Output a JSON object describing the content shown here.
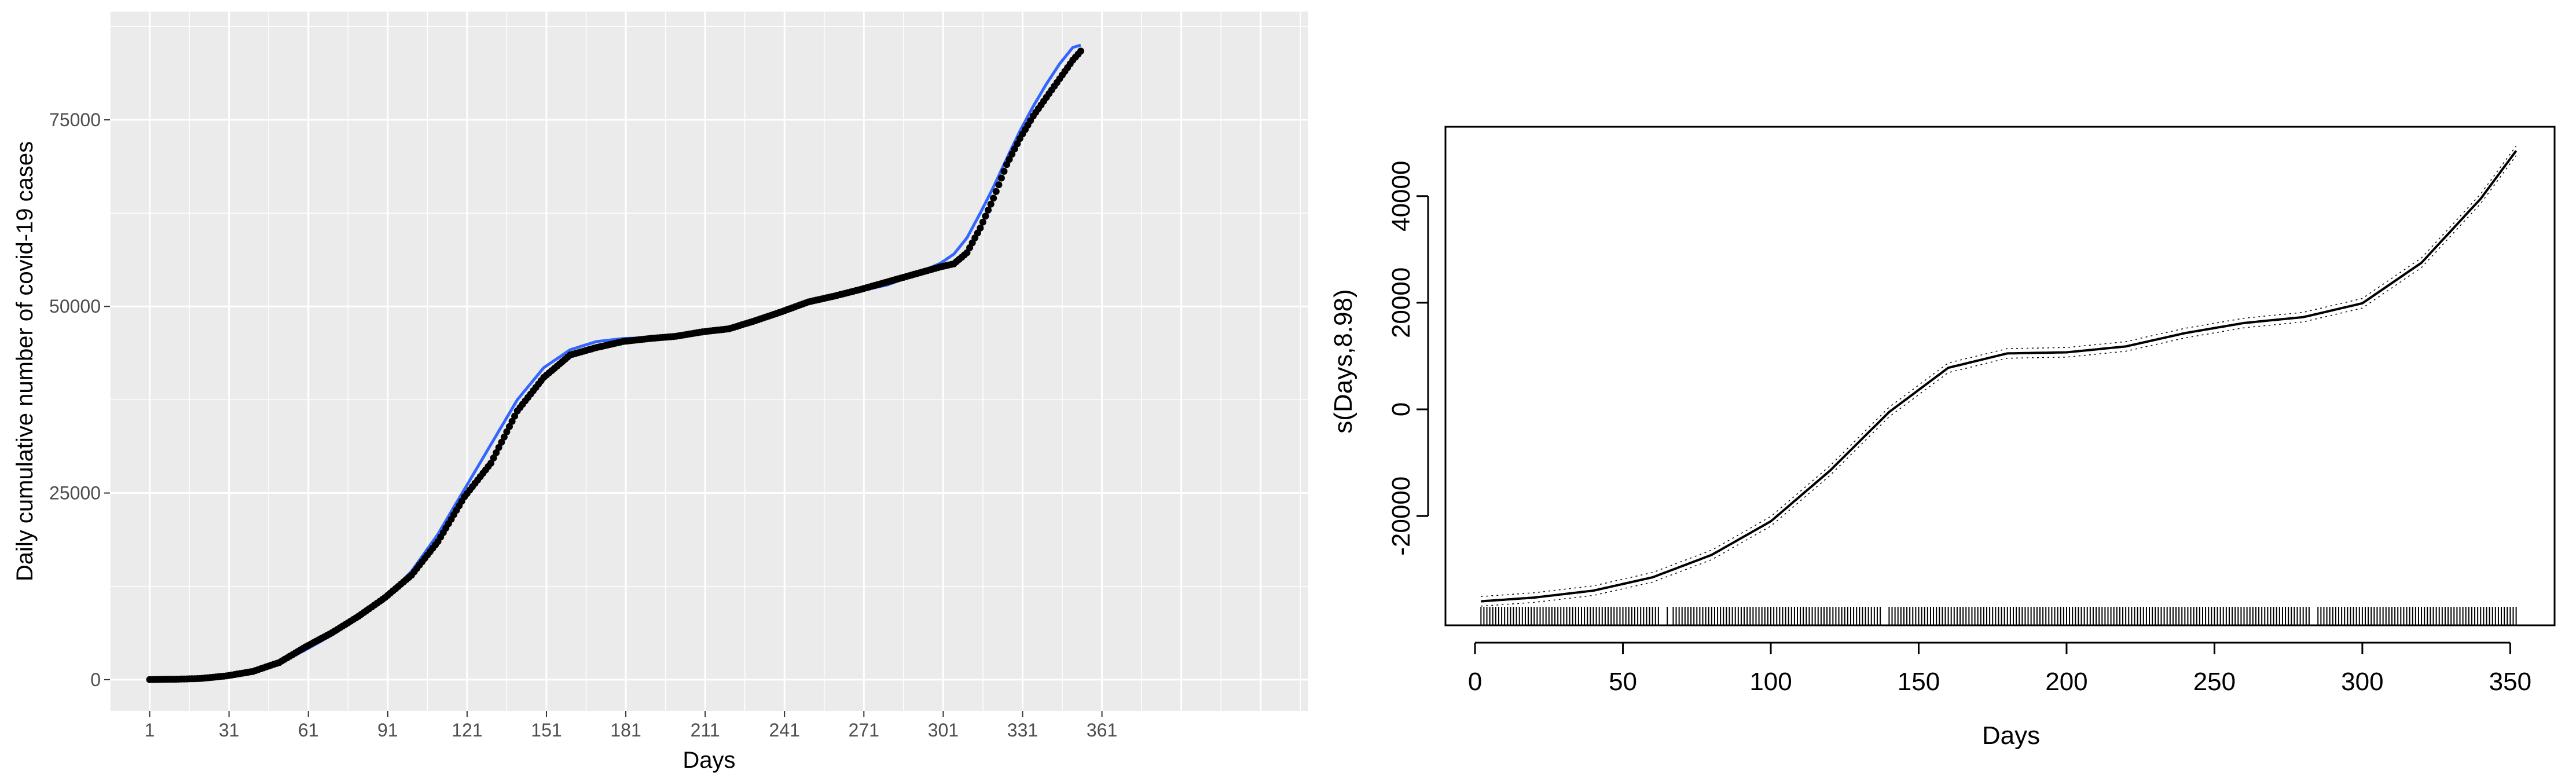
{
  "chart_data": [
    {
      "type": "scatter",
      "xlabel": "Days",
      "ylabel": "Daily cumulative number of covid-19 cases",
      "xlim": [
        -14,
        439
      ],
      "ylim": [
        -4200,
        89500
      ],
      "x_ticks": [
        1,
        31,
        61,
        91,
        121,
        151,
        181,
        211,
        241,
        271,
        301,
        331,
        361
      ],
      "x_tick_labels": [
        "1",
        "31",
        "61",
        "91",
        "121",
        "151",
        "181",
        "211",
        "241",
        "271",
        "301",
        "331",
        "361"
      ],
      "y_ticks": [
        0,
        25000,
        50000,
        75000
      ],
      "y_tick_labels": [
        "0",
        "25000",
        "50000",
        "75000"
      ],
      "grid": true,
      "colors": {
        "panel": "#ebebeb",
        "grid": "#ffffff",
        "points": "#000000",
        "smooth": "#3366ff"
      },
      "series": [
        {
          "kind": "points",
          "x": [
            1,
            10,
            20,
            30,
            40,
            50,
            60,
            70,
            80,
            90,
            100,
            110,
            120,
            130,
            140,
            150,
            160,
            170,
            180,
            190,
            200,
            210,
            220,
            230,
            240,
            250,
            260,
            270,
            280,
            290,
            300,
            305,
            310,
            315,
            320,
            325,
            330,
            335,
            340,
            345,
            350,
            353
          ],
          "y": [
            10,
            50,
            150,
            500,
            1100,
            2300,
            4400,
            6300,
            8500,
            11000,
            14000,
            18500,
            24500,
            29000,
            36000,
            40500,
            43500,
            44500,
            45300,
            45700,
            46000,
            46600,
            47000,
            48100,
            49300,
            50600,
            51400,
            52300,
            53300,
            54300,
            55300,
            55700,
            57200,
            60500,
            64500,
            69000,
            72500,
            75500,
            78000,
            80500,
            83000,
            84200
          ]
        },
        {
          "kind": "smooth",
          "x": [
            1,
            10,
            20,
            30,
            40,
            50,
            60,
            70,
            80,
            90,
            100,
            110,
            120,
            130,
            140,
            150,
            160,
            170,
            180,
            190,
            200,
            210,
            220,
            230,
            240,
            250,
            260,
            270,
            280,
            290,
            300,
            305,
            310,
            315,
            320,
            325,
            330,
            335,
            340,
            345,
            350,
            353
          ],
          "y": [
            0,
            50,
            150,
            450,
            1100,
            2200,
            4000,
            6000,
            8300,
            11000,
            14500,
            19500,
            25500,
            31500,
            37500,
            41800,
            44200,
            45300,
            45700,
            45800,
            46000,
            46300,
            47000,
            48200,
            49500,
            50700,
            51500,
            52100,
            52900,
            54200,
            55800,
            57000,
            59200,
            62500,
            66000,
            69800,
            73500,
            76800,
            79800,
            82500,
            84700,
            85000
          ]
        }
      ]
    },
    {
      "type": "line",
      "xlabel": "Days",
      "ylabel": "s(Days,8.98)",
      "xlim": [
        -10,
        365
      ],
      "ylim": [
        -40500,
        53000
      ],
      "x_ticks": [
        0,
        50,
        100,
        150,
        200,
        250,
        300,
        350
      ],
      "x_tick_labels": [
        "0",
        "50",
        "100",
        "150",
        "200",
        "250",
        "300",
        "350"
      ],
      "y_ticks": [
        -20000,
        0,
        20000,
        40000
      ],
      "y_tick_labels": [
        "-20000",
        "0",
        "20000",
        "40000"
      ],
      "grid": false,
      "colors": {
        "line": "#000000"
      },
      "series": [
        {
          "kind": "smooth",
          "x": [
            2,
            20,
            40,
            60,
            80,
            100,
            120,
            140,
            160,
            180,
            200,
            220,
            240,
            260,
            280,
            300,
            320,
            340,
            352
          ],
          "y": [
            -36000,
            -35300,
            -34000,
            -31500,
            -27300,
            -21000,
            -11500,
            -500,
            7800,
            10500,
            10700,
            11800,
            14300,
            16200,
            17300,
            19900,
            27500,
            39500,
            48500
          ]
        }
      ],
      "rug_days": [
        2,
        3,
        4,
        5,
        6,
        7,
        8,
        9,
        10,
        11,
        12,
        13,
        14,
        15,
        16,
        17,
        18,
        19,
        20,
        21,
        22,
        23,
        24,
        25,
        26,
        27,
        28,
        29,
        30,
        31,
        32,
        33,
        34,
        35,
        36,
        37,
        38,
        39,
        40,
        41,
        42,
        43,
        44,
        45,
        46,
        47,
        48,
        49,
        50,
        51,
        52,
        53,
        54,
        55,
        56,
        57,
        58,
        59,
        60,
        61,
        62,
        65,
        67,
        68,
        69,
        70,
        71,
        72,
        73,
        74,
        75,
        76,
        77,
        78,
        79,
        80,
        81,
        82,
        83,
        84,
        85,
        86,
        87,
        88,
        89,
        90,
        91,
        92,
        93,
        94,
        95,
        96,
        97,
        98,
        99,
        100,
        101,
        102,
        103,
        104,
        105,
        106,
        107,
        108,
        109,
        110,
        111,
        112,
        113,
        114,
        115,
        116,
        117,
        118,
        119,
        120,
        121,
        122,
        123,
        124,
        125,
        126,
        127,
        128,
        129,
        130,
        131,
        132,
        133,
        134,
        135,
        136,
        137,
        140,
        141,
        142,
        143,
        144,
        145,
        146,
        147,
        148,
        149,
        150,
        151,
        152,
        153,
        154,
        155,
        156,
        157,
        158,
        159,
        160,
        161,
        162,
        163,
        164,
        165,
        166,
        167,
        168,
        169,
        170,
        171,
        172,
        173,
        174,
        175,
        176,
        177,
        178,
        179,
        180,
        181,
        182,
        183,
        184,
        185,
        186,
        187,
        188,
        189,
        190,
        191,
        192,
        193,
        194,
        195,
        196,
        197,
        198,
        199,
        200,
        201,
        202,
        203,
        204,
        205,
        206,
        207,
        208,
        209,
        210,
        211,
        212,
        213,
        214,
        215,
        216,
        217,
        218,
        219,
        220,
        221,
        222,
        223,
        224,
        225,
        226,
        227,
        228,
        229,
        230,
        231,
        232,
        233,
        234,
        235,
        236,
        237,
        238,
        239,
        240,
        241,
        242,
        243,
        244,
        245,
        246,
        247,
        248,
        249,
        250,
        251,
        252,
        253,
        254,
        255,
        256,
        257,
        258,
        259,
        260,
        261,
        262,
        263,
        264,
        265,
        266,
        267,
        268,
        269,
        270,
        271,
        272,
        273,
        274,
        275,
        276,
        277,
        278,
        279,
        280,
        281,
        282,
        285,
        286,
        287,
        288,
        289,
        290,
        291,
        292,
        293,
        294,
        295,
        296,
        297,
        298,
        299,
        300,
        301,
        302,
        303,
        304,
        305,
        306,
        307,
        308,
        309,
        310,
        311,
        312,
        313,
        314,
        315,
        316,
        317,
        318,
        319,
        320,
        321,
        322,
        323,
        324,
        325,
        326,
        327,
        328,
        329,
        330,
        331,
        332,
        333,
        334,
        335,
        336,
        337,
        338,
        339,
        340,
        341,
        342,
        343,
        344,
        345,
        346,
        347,
        348,
        349,
        350,
        351,
        352
      ]
    }
  ]
}
